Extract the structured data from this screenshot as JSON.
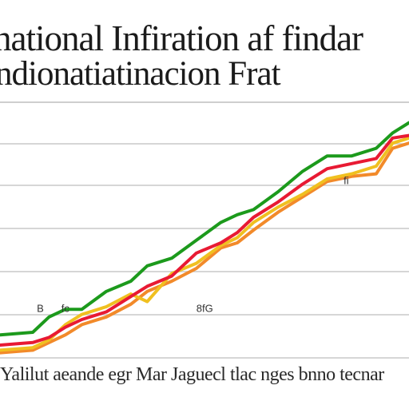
{
  "title_lines": [
    "national Infiration af findar",
    "ndionatiatinacion Frat"
  ],
  "caption": "Yalilut aeande egr Mar Jaguecl tlac nges bnno tecnar",
  "chart_data": {
    "type": "line",
    "title": "national Infiration af findar ndionatiatinacion Frat",
    "xlabel": "",
    "ylabel": "",
    "ylim": [
      0,
      100
    ],
    "xlim": [
      0,
      100
    ],
    "grid": true,
    "annotations": [
      {
        "text": "B",
        "x": 9,
        "y": 18
      },
      {
        "text": "fc",
        "x": 15,
        "y": 18
      },
      {
        "text": "8fG",
        "x": 48,
        "y": 18
      },
      {
        "text": "fi",
        "x": 84,
        "y": 68
      }
    ],
    "series": [
      {
        "color": "#1c9a1c",
        "x": [
          0,
          8,
          12,
          16,
          20,
          26,
          32,
          36,
          42,
          48,
          54,
          58,
          62,
          68,
          74,
          80,
          86,
          92,
          96,
          100
        ],
        "y": [
          9,
          10,
          16,
          19,
          19,
          26,
          30,
          36,
          39,
          46,
          53,
          56,
          58,
          65,
          73,
          79,
          79,
          82,
          88,
          92
        ]
      },
      {
        "color": "#e81a33",
        "x": [
          0,
          8,
          12,
          16,
          20,
          26,
          32,
          36,
          42,
          48,
          54,
          58,
          62,
          68,
          74,
          80,
          86,
          92,
          96,
          100
        ],
        "y": [
          5,
          6,
          8,
          12,
          15,
          18,
          24,
          28,
          32,
          41,
          45,
          49,
          55,
          61,
          68,
          74,
          76,
          78,
          86,
          87
        ]
      },
      {
        "color": "#f0c020",
        "x": [
          0,
          8,
          12,
          16,
          20,
          26,
          32,
          36,
          42,
          48,
          54,
          58,
          62,
          68,
          74,
          80,
          86,
          92,
          96,
          100
        ],
        "y": [
          3,
          4,
          7,
          13,
          17,
          20,
          25,
          22,
          33,
          37,
          44,
          47,
          53,
          59,
          64,
          70,
          72,
          75,
          84,
          86
        ]
      },
      {
        "color": "#f28a2a",
        "x": [
          0,
          8,
          12,
          16,
          20,
          26,
          32,
          36,
          42,
          48,
          54,
          58,
          62,
          68,
          74,
          80,
          86,
          92,
          96,
          100
        ],
        "y": [
          2,
          3,
          6,
          9,
          13,
          16,
          21,
          26,
          30,
          35,
          43,
          45,
          50,
          57,
          63,
          69,
          71,
          72,
          82,
          84
        ]
      }
    ]
  }
}
